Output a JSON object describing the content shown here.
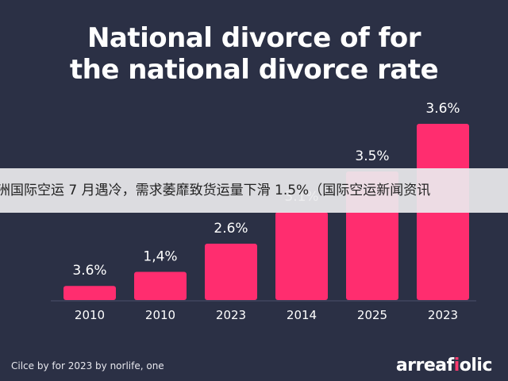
{
  "chart_data": {
    "type": "bar",
    "title_line1": "National divorce of for",
    "title_line2": "the national divorce rate",
    "categories": [
      "2010",
      "2010",
      "2023",
      "2014",
      "2025",
      "2023"
    ],
    "values": [
      3.6,
      1.4,
      2.6,
      3.1,
      3.5,
      3.6
    ],
    "value_labels": [
      "3.6%",
      "1,4%",
      "2.6%",
      "3.1%",
      "3.5%",
      "3.6%"
    ],
    "bar_levels": [
      0.08,
      0.16,
      0.32,
      0.5,
      0.73,
      1.0
    ],
    "bar_color": "#ff2d6f",
    "background_color": "#2b3045",
    "grid": false
  },
  "banner": {
    "text": "洲国际空运 7 月遇冷，需求萎靡致货运量下滑 1.5%（国际空运新闻资讯"
  },
  "footer": {
    "source": "Cilce by for 2023 by norlife, one",
    "brand_main": "arreaf",
    "brand_accent": "i",
    "brand_end": "olic"
  }
}
